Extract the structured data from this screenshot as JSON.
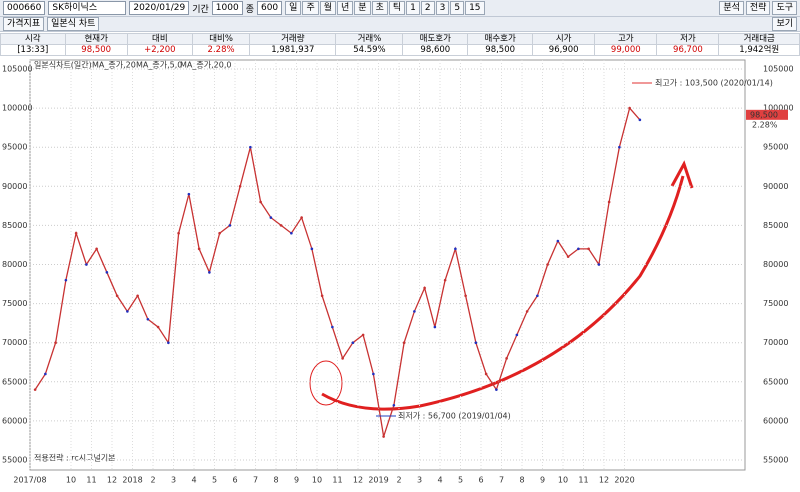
{
  "toolbar": {
    "code": "000660",
    "name": "SK하이닉스",
    "date": "2020/01/29",
    "period_label": "기간",
    "period": "1000",
    "count_label": "종",
    "count": "600",
    "units": [
      "일",
      "주",
      "월",
      "년",
      "분",
      "초",
      "틱",
      "1",
      "2",
      "3",
      "5",
      "15"
    ],
    "right": [
      "분석",
      "전략",
      "도구"
    ],
    "tabs": [
      "가격지표",
      "일본식 차트"
    ],
    "view": "보기"
  },
  "info": {
    "headers": [
      "시각",
      "현재가",
      "대비",
      "대비%",
      "거래량",
      "거래%",
      "매도호가",
      "매수호가",
      "시가",
      "고가",
      "저가",
      "거래대금"
    ],
    "values": [
      "[13:33]",
      "98,500",
      "+2,200",
      "2.28%",
      "1,981,937",
      "54.59%",
      "98,600",
      "98,500",
      "96,900",
      "99,000",
      "96,700",
      "1,942억원"
    ]
  },
  "chart_data": {
    "type": "line",
    "title": "일본식차트(일간)",
    "legend": [
      "MA_종가,20",
      "MA_종가,5,0",
      "MA_종가,20,0"
    ],
    "categories": [
      "2017/08",
      null,
      null,
      null,
      "10",
      null,
      "11",
      null,
      "12",
      null,
      "2018",
      null,
      "2",
      null,
      "3",
      null,
      "4",
      null,
      "5",
      null,
      "6",
      null,
      "7",
      null,
      "8",
      null,
      "9",
      null,
      "10",
      null,
      "11",
      null,
      "12",
      null,
      "2019",
      null,
      "2",
      null,
      "3",
      null,
      "4",
      null,
      "5",
      null,
      "6",
      null,
      "7",
      null,
      "8",
      null,
      "9",
      null,
      "10",
      null,
      "11",
      null,
      "12",
      null,
      "2020",
      null
    ],
    "series": [
      {
        "name": "종가",
        "color": "#c83232",
        "values": [
          64000,
          66000,
          70000,
          78000,
          84000,
          80000,
          82000,
          79000,
          76000,
          74000,
          76000,
          73000,
          72000,
          70000,
          84000,
          89000,
          82000,
          79000,
          84000,
          85000,
          90000,
          95000,
          88000,
          86000,
          85000,
          84000,
          86000,
          82000,
          76000,
          72000,
          68000,
          70000,
          71000,
          66000,
          58000,
          62000,
          70000,
          74000,
          77000,
          72000,
          78000,
          82000,
          76000,
          70000,
          66000,
          64000,
          68000,
          71000,
          74000,
          76000,
          80000,
          83000,
          81000,
          82000,
          82000,
          80000,
          88000,
          95000,
          100000,
          98500
        ]
      }
    ],
    "ylim": [
      55000,
      105000
    ],
    "yticks": [
      55000,
      60000,
      65000,
      70000,
      75000,
      80000,
      85000,
      90000,
      95000,
      100000,
      105000
    ],
    "grid": true,
    "last_label": "98,500",
    "last_change": "2.28%",
    "annotations": {
      "high": "최고가 : 103,500 (2020/01/14)",
      "low": "최저가 : 56,700 (2019/01/04)",
      "strategy": "적용전략 : rc시그널기본"
    }
  }
}
